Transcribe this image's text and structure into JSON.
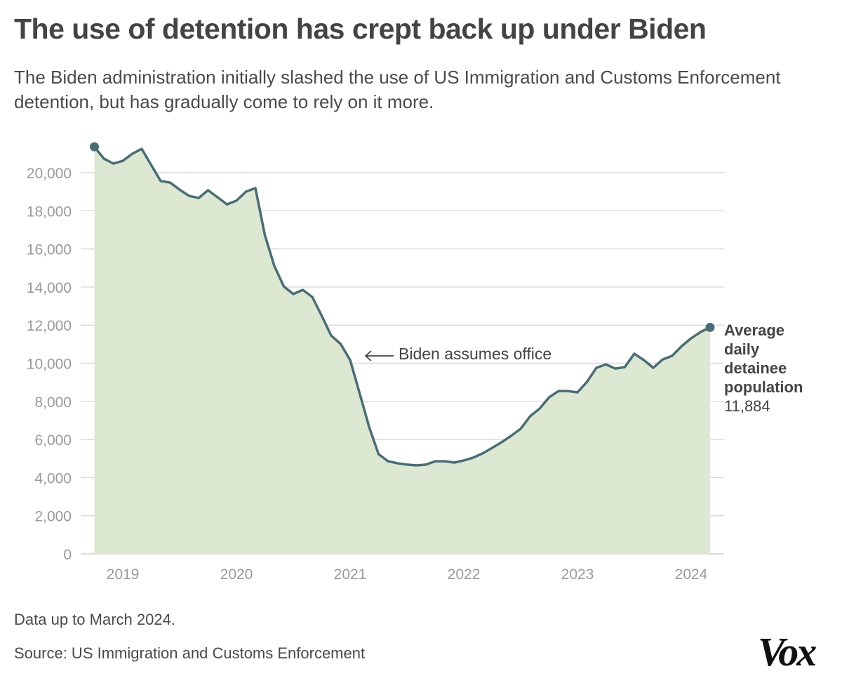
{
  "title": "The use of detention has crept back up under Biden",
  "subtitle": "The Biden administration initially slashed the use of US Immigration and Customs Enforcement detention, but has gradually come to rely on it more.",
  "note": "Data up to March 2024.",
  "source": "Source: US Immigration and Customs Enforcement",
  "logo": "Vox",
  "chart_data": {
    "type": "area",
    "title": "The use of detention has crept back up under Biden",
    "xlabel": "",
    "ylabel": "",
    "ylim": [
      0,
      21500
    ],
    "yticks": [
      0,
      2000,
      4000,
      6000,
      8000,
      10000,
      12000,
      14000,
      16000,
      18000,
      20000
    ],
    "ytick_labels": [
      "0",
      "2,000",
      "4,000",
      "6,000",
      "8,000",
      "10,000",
      "12,000",
      "14,000",
      "16,000",
      "18,000",
      "20,000"
    ],
    "xtick_labels": [
      "2019",
      "2020",
      "2021",
      "2022",
      "2023",
      "2024"
    ],
    "grid": "horizontal",
    "colors": {
      "line": "#4b6c74",
      "fill": "#dde8d3",
      "grid": "#dcdcdc"
    },
    "x": [
      "2018-10",
      "2018-11",
      "2018-12",
      "2019-01",
      "2019-02",
      "2019-03",
      "2019-04",
      "2019-05",
      "2019-06",
      "2019-07",
      "2019-08",
      "2019-09",
      "2019-10",
      "2019-11",
      "2019-12",
      "2020-01",
      "2020-02",
      "2020-03",
      "2020-04",
      "2020-05",
      "2020-06",
      "2020-07",
      "2020-08",
      "2020-09",
      "2020-10",
      "2020-11",
      "2020-12",
      "2021-01",
      "2021-02",
      "2021-03",
      "2021-04",
      "2021-05",
      "2021-06",
      "2021-07",
      "2021-08",
      "2021-09",
      "2021-10",
      "2021-11",
      "2021-12",
      "2022-01",
      "2022-02",
      "2022-03",
      "2022-04",
      "2022-05",
      "2022-06",
      "2022-07",
      "2022-08",
      "2022-09",
      "2022-10",
      "2022-11",
      "2022-12",
      "2023-01",
      "2023-02",
      "2023-03",
      "2023-04",
      "2023-05",
      "2023-06",
      "2023-07",
      "2023-08",
      "2023-09",
      "2023-10",
      "2023-11",
      "2023-12",
      "2024-01",
      "2024-02",
      "2024-03"
    ],
    "series": [
      {
        "name": "Average daily detainee population",
        "values": [
          21360,
          20740,
          20480,
          20620,
          20990,
          21250,
          20400,
          19560,
          19480,
          19110,
          18780,
          18670,
          19080,
          18710,
          18340,
          18530,
          19000,
          19190,
          16720,
          15100,
          14030,
          13630,
          13850,
          13480,
          12490,
          11450,
          11010,
          10170,
          8430,
          6670,
          5230,
          4860,
          4750,
          4680,
          4640,
          4680,
          4860,
          4860,
          4790,
          4900,
          5050,
          5270,
          5560,
          5860,
          6190,
          6560,
          7220,
          7620,
          8210,
          8540,
          8540,
          8470,
          9020,
          9760,
          9940,
          9720,
          9800,
          10500,
          10170,
          9760,
          10200,
          10390,
          10900,
          11310,
          11640,
          11884
        ]
      }
    ],
    "annotations": [
      {
        "text": "Biden assumes office",
        "x": "2021-01",
        "arrow": "left"
      }
    ],
    "end_label": {
      "line1": "Average",
      "line2": "daily",
      "line3": "detainee",
      "line4": "population",
      "value": "11,884"
    }
  }
}
